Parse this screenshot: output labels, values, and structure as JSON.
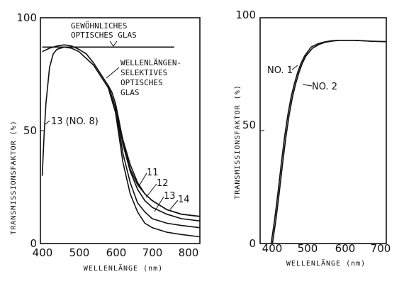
{
  "chart_data": [
    {
      "type": "line",
      "xlabel": "WELLENLÄNGE (nm)",
      "ylabel": "TRANSMISSIONSFAKTOR (%)",
      "xlim": [
        400,
        830
      ],
      "ylim": [
        0,
        100
      ],
      "x_ticks": [
        "400",
        "500",
        "600",
        "700",
        "800"
      ],
      "y_ticks": [
        "0",
        "50",
        "100"
      ],
      "grid": false,
      "series": [
        {
          "name": "GEWÖHNLICHES OPTISCHES GLAS",
          "x": [
            400,
            760
          ],
          "y": [
            87,
            87
          ]
        },
        {
          "name": "WELLENLÄNGEN-SELEKTIVES OPTISCHES GLAS",
          "x": [
            400,
            420,
            440,
            460,
            480,
            500,
            520,
            540,
            560,
            580,
            590,
            600,
            610,
            620,
            640,
            660,
            680,
            700,
            740,
            780,
            830
          ],
          "y": [
            85,
            86.5,
            87.5,
            88,
            87.5,
            86,
            84,
            80,
            75,
            70,
            67,
            62,
            54,
            45,
            33,
            26,
            22,
            19,
            15,
            13,
            12
          ]
        },
        {
          "name": "11",
          "x": [
            580,
            600,
            620,
            640,
            660,
            680,
            700,
            740,
            780,
            830
          ],
          "y": [
            70,
            60,
            44,
            32,
            24,
            19,
            16,
            13,
            11,
            10
          ]
        },
        {
          "name": "12",
          "x": [
            580,
            600,
            620,
            640,
            660,
            680,
            700,
            740,
            780,
            830
          ],
          "y": [
            70,
            60,
            40,
            27,
            18,
            14,
            11,
            9,
            8,
            7
          ]
        },
        {
          "name": "13 (NO. 8)",
          "x": [
            400,
            405,
            410,
            420,
            430,
            440,
            460,
            480,
            500,
            540,
            580,
            600,
            620,
            640,
            660,
            680,
            700,
            740,
            780,
            830
          ],
          "y": [
            30,
            48,
            62,
            78,
            84,
            86,
            87,
            86.5,
            85,
            79,
            69,
            58,
            36,
            22,
            14,
            9,
            7,
            5,
            4,
            3
          ]
        },
        {
          "name": "14",
          "x": [
            600,
            620,
            640,
            660,
            680,
            700,
            740,
            780,
            830
          ],
          "y": [
            61,
            46,
            35,
            27,
            22,
            19,
            15,
            13,
            12
          ]
        }
      ],
      "annotations": [
        "GEWÖHNLICHES",
        "OPTISCHES GLAS",
        "WELLENLÄNGEN-",
        "SELEKTIVES",
        "OPTISCHES",
        "GLAS",
        "13 (NO. 8)",
        "11",
        "12",
        "13",
        "14"
      ]
    },
    {
      "type": "line",
      "xlabel": "WELLENLÄNGE (nm)",
      "ylabel": "TRANSMISSIONSFAKTOR (%)",
      "xlim": [
        370,
        745
      ],
      "ylim": [
        0,
        100
      ],
      "x_ticks": [
        "400",
        "500",
        "600",
        "700"
      ],
      "y_ticks": [
        "0",
        "50",
        "100"
      ],
      "grid": false,
      "series": [
        {
          "name": "NO. 1",
          "x": [
            400,
            410,
            420,
            430,
            440,
            450,
            460,
            470,
            480,
            490,
            500,
            520,
            540,
            560,
            580,
            600,
            650,
            700,
            745
          ],
          "y": [
            0,
            10,
            22,
            35,
            47,
            57,
            65,
            71,
            76,
            80,
            83,
            87,
            88.5,
            89.3,
            89.8,
            90,
            90,
            89.6,
            89.4
          ]
        },
        {
          "name": "NO. 2",
          "x": [
            404,
            414,
            424,
            434,
            444,
            454,
            464,
            474,
            484,
            494,
            504,
            524,
            544,
            564,
            584,
            604,
            650,
            700,
            745
          ],
          "y": [
            0,
            10,
            22,
            35,
            47,
            57,
            65,
            71,
            76,
            80,
            83,
            86.5,
            88.2,
            89.2,
            89.7,
            90,
            90,
            89.6,
            89.4
          ]
        }
      ],
      "annotations": [
        "NO. 1",
        "NO. 2"
      ]
    }
  ],
  "labels": {
    "left": {
      "ylabel": "TRANSMISSIONSFAKTOR (%)",
      "xlabel": "WELLENLÄNGE (nm)",
      "y_ticks": [
        "0",
        "50",
        "100"
      ],
      "x_ticks": [
        "400",
        "500",
        "600",
        "700",
        "800"
      ],
      "ann_glass_line1": "GEWÖHNLICHES",
      "ann_glass_line2": "OPTISCHES GLAS",
      "ann_sel_line1": "WELLENLÄNGEN-",
      "ann_sel_line2": "SELEKTIVES",
      "ann_sel_line3": "OPTISCHES",
      "ann_sel_line4": "GLAS",
      "ann_13no8": "13 (NO. 8)",
      "ann_11": "11",
      "ann_12": "12",
      "ann_13": "13",
      "ann_14": "14"
    },
    "right": {
      "ylabel": "TRANSMISSIONSFAKTOR (%)",
      "xlabel": "WELLENLÄNGE (nm)",
      "y_ticks": [
        "0",
        "50",
        "100"
      ],
      "x_ticks": [
        "400",
        "500",
        "600",
        "700"
      ],
      "ann_no1": "NO. 1",
      "ann_no2": "NO. 2"
    }
  }
}
